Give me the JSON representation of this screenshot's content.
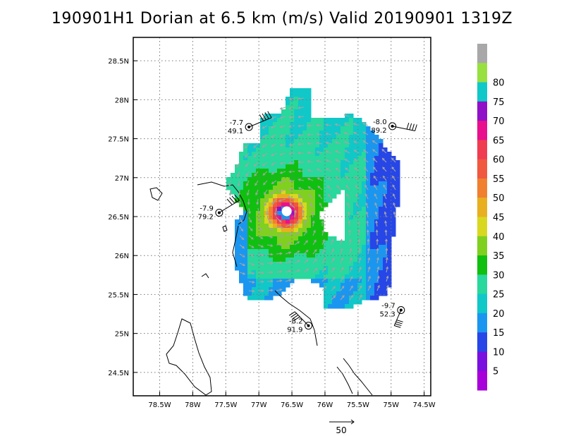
{
  "title": "190901H1 Dorian at 6.5 km (m/s) Valid 20190901  1319Z",
  "chart_data": {
    "type": "heatmap",
    "title": "190901H1 Dorian at 6.5 km (m/s) Valid 20190901  1319Z",
    "x_axis": {
      "range": [
        -78.9,
        -74.4
      ],
      "ticks": [
        -78.5,
        -78.0,
        -77.5,
        -77.0,
        -76.5,
        -76.0,
        -75.5,
        -75.0,
        -74.5
      ],
      "tick_labels": [
        "78.5W",
        "78W",
        "77.5W",
        "77W",
        "76.5W",
        "76W",
        "75.5W",
        "75W",
        "74.5W"
      ]
    },
    "y_axis": {
      "range": [
        24.2,
        28.8
      ],
      "ticks": [
        24.5,
        25.0,
        25.5,
        26.0,
        26.5,
        27.0,
        27.5,
        28.0,
        28.5
      ],
      "tick_labels": [
        "24.5N",
        "25N",
        "25.5N",
        "26N",
        "26.5N",
        "27N",
        "27.5N",
        "28N",
        "28.5N"
      ]
    },
    "grid": "dotted",
    "storm_center": {
      "lon": -76.6,
      "lat": 26.55
    },
    "max_wind_approx": 70,
    "colorbar": {
      "labels": [
        "5",
        "10",
        "15",
        "20",
        "25",
        "30",
        "35",
        "40",
        "45",
        "50",
        "55",
        "60",
        "65",
        "70",
        "75",
        "80"
      ],
      "colors": [
        "#a800d8",
        "#7a10e0",
        "#2646e8",
        "#1a96f0",
        "#10c8c8",
        "#28d89c",
        "#10c010",
        "#80d020",
        "#d8d820",
        "#e8b020",
        "#f08030",
        "#f05840",
        "#f03c50",
        "#e8108c",
        "#9010c8",
        "#10c8c8",
        "#98e040",
        "#a8a8a8"
      ]
    },
    "stations": [
      {
        "top": "-7.7",
        "bottom": "49.1",
        "lon": -77.15,
        "lat": 27.65
      },
      {
        "top": "-8.0",
        "bottom": "89.2",
        "lon": -74.98,
        "lat": 27.66
      },
      {
        "top": "-7.9",
        "bottom": "79.2",
        "lon": -77.6,
        "lat": 26.55
      },
      {
        "top": "-8.2",
        "bottom": "91.9",
        "lon": -76.25,
        "lat": 25.1
      },
      {
        "top": "-9.7",
        "bottom": "52.3",
        "lon": -74.85,
        "lat": 25.3
      }
    ],
    "reference_vector": {
      "value": "50"
    }
  }
}
